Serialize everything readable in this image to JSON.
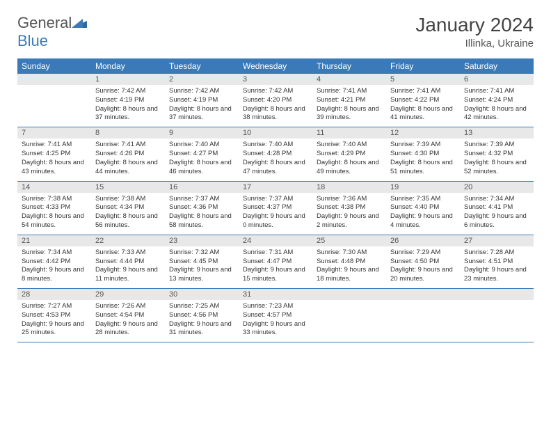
{
  "logo": {
    "text1": "General",
    "text2": "Blue"
  },
  "title": "January 2024",
  "location": "Illinka, Ukraine",
  "header_bg": "#3a7ab8",
  "daynum_bg": "#e8e8e8",
  "day_headers": [
    "Sunday",
    "Monday",
    "Tuesday",
    "Wednesday",
    "Thursday",
    "Friday",
    "Saturday"
  ],
  "weeks": [
    [
      {
        "n": "",
        "lines": []
      },
      {
        "n": "1",
        "lines": [
          "Sunrise: 7:42 AM",
          "Sunset: 4:19 PM",
          "Daylight: 8 hours and 37 minutes."
        ]
      },
      {
        "n": "2",
        "lines": [
          "Sunrise: 7:42 AM",
          "Sunset: 4:19 PM",
          "Daylight: 8 hours and 37 minutes."
        ]
      },
      {
        "n": "3",
        "lines": [
          "Sunrise: 7:42 AM",
          "Sunset: 4:20 PM",
          "Daylight: 8 hours and 38 minutes."
        ]
      },
      {
        "n": "4",
        "lines": [
          "Sunrise: 7:41 AM",
          "Sunset: 4:21 PM",
          "Daylight: 8 hours and 39 minutes."
        ]
      },
      {
        "n": "5",
        "lines": [
          "Sunrise: 7:41 AM",
          "Sunset: 4:22 PM",
          "Daylight: 8 hours and 41 minutes."
        ]
      },
      {
        "n": "6",
        "lines": [
          "Sunrise: 7:41 AM",
          "Sunset: 4:24 PM",
          "Daylight: 8 hours and 42 minutes."
        ]
      }
    ],
    [
      {
        "n": "7",
        "lines": [
          "Sunrise: 7:41 AM",
          "Sunset: 4:25 PM",
          "Daylight: 8 hours and 43 minutes."
        ]
      },
      {
        "n": "8",
        "lines": [
          "Sunrise: 7:41 AM",
          "Sunset: 4:26 PM",
          "Daylight: 8 hours and 44 minutes."
        ]
      },
      {
        "n": "9",
        "lines": [
          "Sunrise: 7:40 AM",
          "Sunset: 4:27 PM",
          "Daylight: 8 hours and 46 minutes."
        ]
      },
      {
        "n": "10",
        "lines": [
          "Sunrise: 7:40 AM",
          "Sunset: 4:28 PM",
          "Daylight: 8 hours and 47 minutes."
        ]
      },
      {
        "n": "11",
        "lines": [
          "Sunrise: 7:40 AM",
          "Sunset: 4:29 PM",
          "Daylight: 8 hours and 49 minutes."
        ]
      },
      {
        "n": "12",
        "lines": [
          "Sunrise: 7:39 AM",
          "Sunset: 4:30 PM",
          "Daylight: 8 hours and 51 minutes."
        ]
      },
      {
        "n": "13",
        "lines": [
          "Sunrise: 7:39 AM",
          "Sunset: 4:32 PM",
          "Daylight: 8 hours and 52 minutes."
        ]
      }
    ],
    [
      {
        "n": "14",
        "lines": [
          "Sunrise: 7:38 AM",
          "Sunset: 4:33 PM",
          "Daylight: 8 hours and 54 minutes."
        ]
      },
      {
        "n": "15",
        "lines": [
          "Sunrise: 7:38 AM",
          "Sunset: 4:34 PM",
          "Daylight: 8 hours and 56 minutes."
        ]
      },
      {
        "n": "16",
        "lines": [
          "Sunrise: 7:37 AM",
          "Sunset: 4:36 PM",
          "Daylight: 8 hours and 58 minutes."
        ]
      },
      {
        "n": "17",
        "lines": [
          "Sunrise: 7:37 AM",
          "Sunset: 4:37 PM",
          "Daylight: 9 hours and 0 minutes."
        ]
      },
      {
        "n": "18",
        "lines": [
          "Sunrise: 7:36 AM",
          "Sunset: 4:38 PM",
          "Daylight: 9 hours and 2 minutes."
        ]
      },
      {
        "n": "19",
        "lines": [
          "Sunrise: 7:35 AM",
          "Sunset: 4:40 PM",
          "Daylight: 9 hours and 4 minutes."
        ]
      },
      {
        "n": "20",
        "lines": [
          "Sunrise: 7:34 AM",
          "Sunset: 4:41 PM",
          "Daylight: 9 hours and 6 minutes."
        ]
      }
    ],
    [
      {
        "n": "21",
        "lines": [
          "Sunrise: 7:34 AM",
          "Sunset: 4:42 PM",
          "Daylight: 9 hours and 8 minutes."
        ]
      },
      {
        "n": "22",
        "lines": [
          "Sunrise: 7:33 AM",
          "Sunset: 4:44 PM",
          "Daylight: 9 hours and 11 minutes."
        ]
      },
      {
        "n": "23",
        "lines": [
          "Sunrise: 7:32 AM",
          "Sunset: 4:45 PM",
          "Daylight: 9 hours and 13 minutes."
        ]
      },
      {
        "n": "24",
        "lines": [
          "Sunrise: 7:31 AM",
          "Sunset: 4:47 PM",
          "Daylight: 9 hours and 15 minutes."
        ]
      },
      {
        "n": "25",
        "lines": [
          "Sunrise: 7:30 AM",
          "Sunset: 4:48 PM",
          "Daylight: 9 hours and 18 minutes."
        ]
      },
      {
        "n": "26",
        "lines": [
          "Sunrise: 7:29 AM",
          "Sunset: 4:50 PM",
          "Daylight: 9 hours and 20 minutes."
        ]
      },
      {
        "n": "27",
        "lines": [
          "Sunrise: 7:28 AM",
          "Sunset: 4:51 PM",
          "Daylight: 9 hours and 23 minutes."
        ]
      }
    ],
    [
      {
        "n": "28",
        "lines": [
          "Sunrise: 7:27 AM",
          "Sunset: 4:53 PM",
          "Daylight: 9 hours and 25 minutes."
        ]
      },
      {
        "n": "29",
        "lines": [
          "Sunrise: 7:26 AM",
          "Sunset: 4:54 PM",
          "Daylight: 9 hours and 28 minutes."
        ]
      },
      {
        "n": "30",
        "lines": [
          "Sunrise: 7:25 AM",
          "Sunset: 4:56 PM",
          "Daylight: 9 hours and 31 minutes."
        ]
      },
      {
        "n": "31",
        "lines": [
          "Sunrise: 7:23 AM",
          "Sunset: 4:57 PM",
          "Daylight: 9 hours and 33 minutes."
        ]
      },
      {
        "n": "",
        "lines": []
      },
      {
        "n": "",
        "lines": []
      },
      {
        "n": "",
        "lines": []
      }
    ]
  ]
}
